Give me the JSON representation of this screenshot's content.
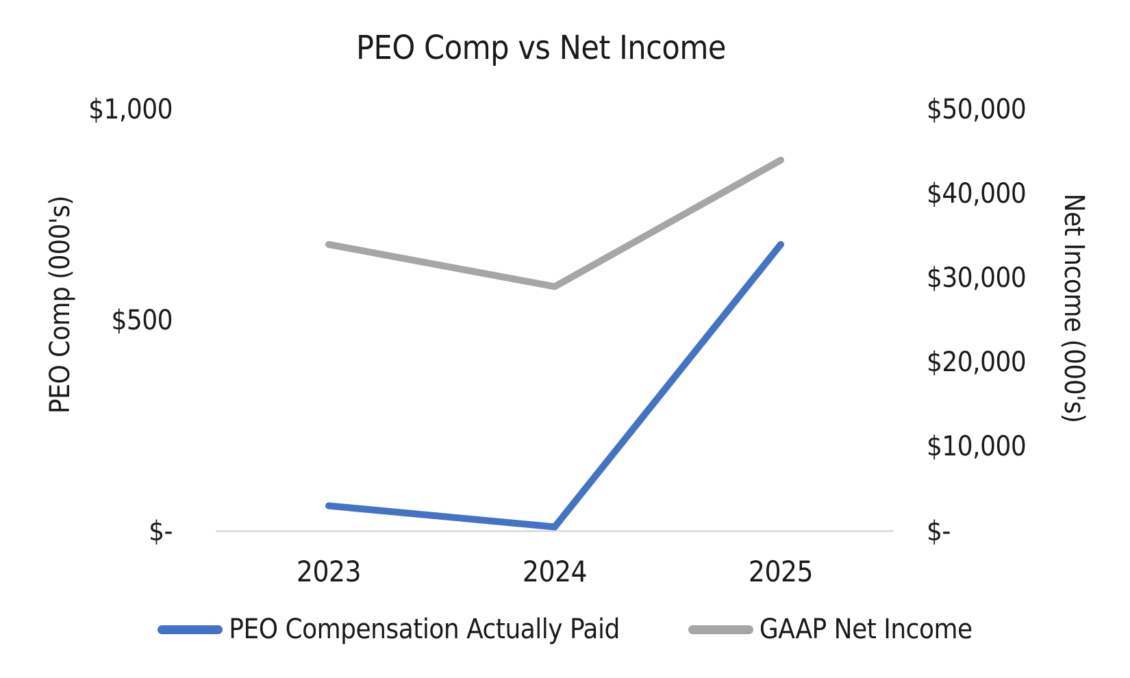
{
  "chart_data": {
    "type": "line",
    "title": "PEO Comp vs Net Income",
    "categories": [
      "2023",
      "2024",
      "2025"
    ],
    "series": [
      {
        "name": "PEO Compensation Actually Paid",
        "axis": "left",
        "color": "#4472C4",
        "values": [
          60,
          10,
          680
        ]
      },
      {
        "name": "GAAP Net Income",
        "axis": "right",
        "color": "#A6A6A6",
        "values": [
          34000,
          29000,
          44000
        ]
      }
    ],
    "left_axis": {
      "label": "PEO Comp (000's)",
      "ylim": [
        0,
        1000
      ],
      "ticks": [
        {
          "label": "$1,000",
          "value": 1000
        },
        {
          "label": "$500",
          "value": 500
        },
        {
          "label": "$-",
          "value": 0
        }
      ]
    },
    "right_axis": {
      "label": "Net Income (000's)",
      "ylim": [
        0,
        50000
      ],
      "ticks": [
        {
          "label": "$50,000",
          "value": 50000
        },
        {
          "label": "$40,000",
          "value": 40000
        },
        {
          "label": "$30,000",
          "value": 30000
        },
        {
          "label": "$20,000",
          "value": 20000
        },
        {
          "label": "$10,000",
          "value": 10000
        },
        {
          "label": "$-",
          "value": 0
        }
      ]
    },
    "legend_position": "bottom",
    "grid": false,
    "axis_line_color": "#D9D9D9",
    "text_color": "#1a1a1a",
    "background": "#FFFFFF"
  }
}
